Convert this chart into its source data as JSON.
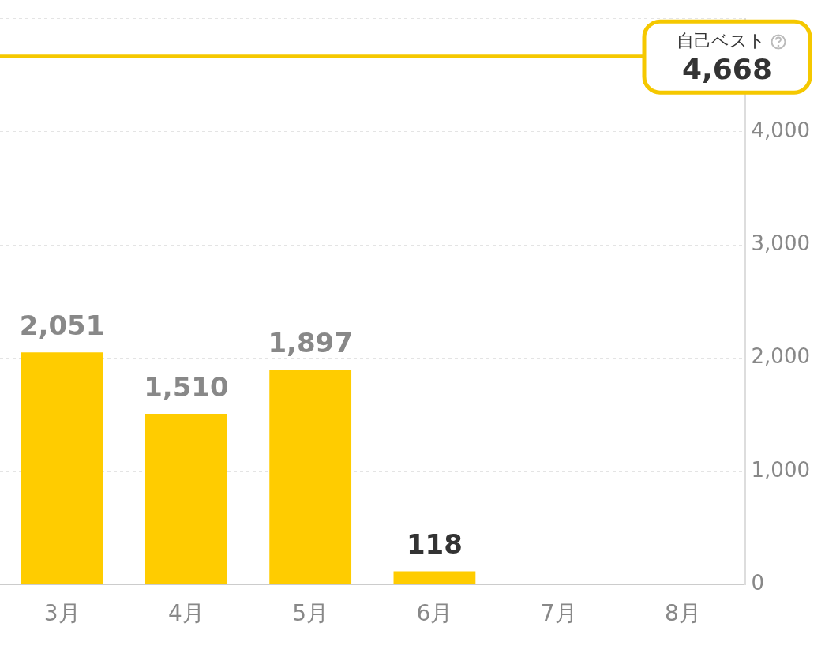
{
  "chart_data": {
    "type": "bar",
    "categories": [
      "3月",
      "4月",
      "5月",
      "6月",
      "7月",
      "8月"
    ],
    "values": [
      2051,
      1510,
      1897,
      118,
      null,
      null
    ],
    "color": "#ffcc00",
    "value_labels": [
      "2,051",
      "1,510",
      "1,897",
      "118",
      null,
      null
    ],
    "annotations": [
      "4,668"
    ],
    "ylim": [
      0,
      5000
    ],
    "yticks": [
      0,
      {
        "value": 1000,
        "label": "1,000"
      },
      {
        "value": 2000,
        "label": "2,000"
      },
      {
        "value": 3000,
        "label": "3,000"
      },
      {
        "value": 4000,
        "label": "4,000"
      },
      {
        "value": 5000,
        "label": null
      }
    ],
    "grid": "y",
    "ref_lines": [
      {
        "axis": "y",
        "value": 4668,
        "label": "自己ベスト",
        "color": "#f5c800"
      }
    ]
  }
}
